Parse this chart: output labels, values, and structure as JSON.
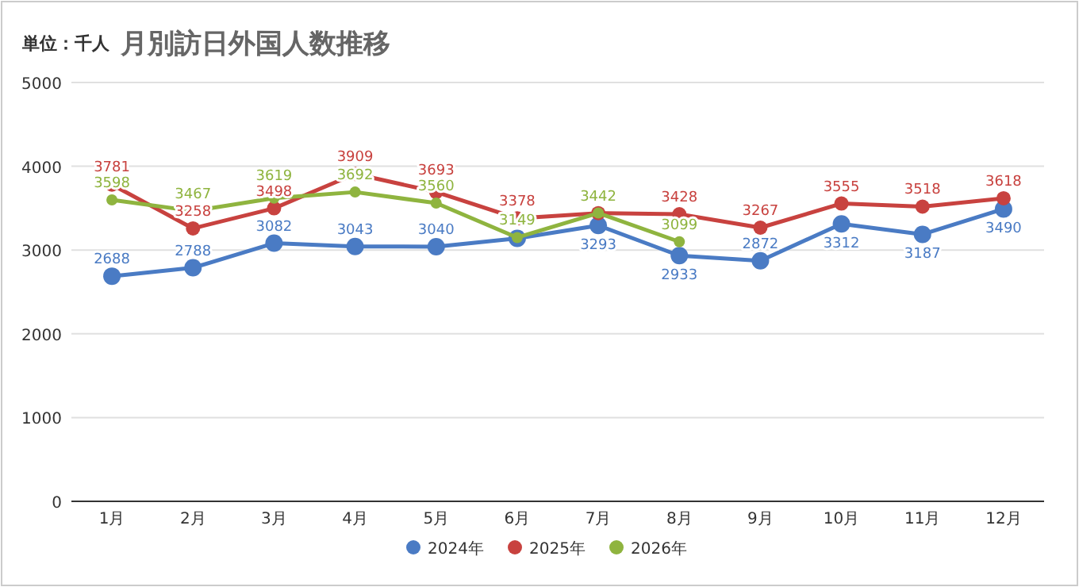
{
  "chart_data": {
    "type": "line",
    "title": "月別訪日外国人数推移",
    "subtitle": "単位：千人",
    "categories": [
      "1月",
      "2月",
      "3月",
      "4月",
      "5月",
      "6月",
      "7月",
      "8月",
      "9月",
      "10月",
      "11月",
      "12月"
    ],
    "series": [
      {
        "name": "2024年",
        "color": "#4a7bc4",
        "values": [
          2688,
          2788,
          3082,
          3043,
          3040,
          3140,
          3293,
          2933,
          2872,
          3312,
          3187,
          3490
        ],
        "value_labels": [
          "2688",
          "2788",
          "3082",
          "3043",
          "3040",
          null,
          "3293",
          "2933",
          "2872",
          "3312",
          "3187",
          "3490"
        ]
      },
      {
        "name": "2025年",
        "color": "#c8423f",
        "values": [
          3781,
          3258,
          3498,
          3909,
          3693,
          3378,
          3440,
          3428,
          3267,
          3555,
          3518,
          3618
        ],
        "value_labels": [
          "3781",
          "3258",
          "3498",
          "3909",
          "3693",
          "3378",
          null,
          "3428",
          "3267",
          "3555",
          "3518",
          "3618"
        ]
      },
      {
        "name": "2026年",
        "color": "#8fb43f",
        "values": [
          3598,
          3467,
          3619,
          3692,
          3560,
          3149,
          3442,
          3099,
          null,
          null,
          null,
          null
        ],
        "value_labels": [
          "3598",
          "3467",
          "3619",
          "3692",
          "3560",
          "3149",
          "3442",
          "3099",
          null,
          null,
          null,
          null
        ]
      }
    ],
    "ylim": [
      0,
      5000
    ],
    "yticks": [
      0,
      1000,
      2000,
      3000,
      4000,
      5000
    ],
    "grid": "y",
    "legend": "bottom",
    "marker": "circle",
    "line_style": "solid"
  }
}
